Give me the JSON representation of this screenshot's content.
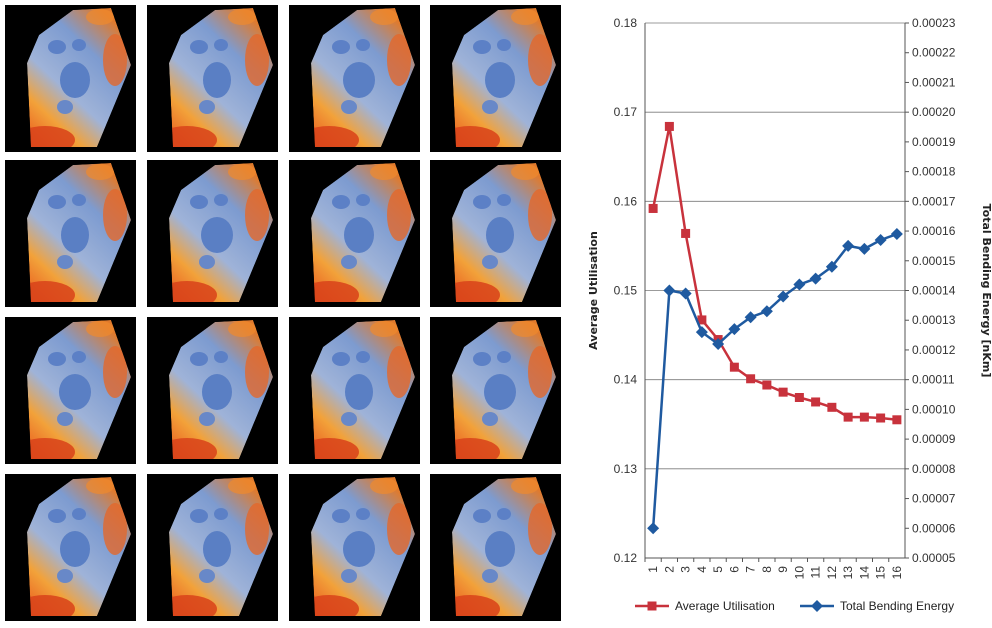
{
  "panel_grid": {
    "rows": 4,
    "cols": 4
  },
  "colors": {
    "utilisation": "#c8323c",
    "bending": "#1f5aa0",
    "grid": "#7a7a7a"
  },
  "chart_data": {
    "type": "line",
    "x": [
      "1",
      "2",
      "3",
      "4",
      "5",
      "6",
      "7",
      "8",
      "9",
      "10",
      "11",
      "12",
      "13",
      "14",
      "15",
      "16"
    ],
    "ylabel": "Average Utilisation",
    "y2label": "Total Bending Energy [nKm]",
    "ylim": [
      0.12,
      0.18
    ],
    "y2lim": [
      5e-05,
      0.00023
    ],
    "yticks": [
      "0.12",
      "0.13",
      "0.14",
      "0.15",
      "0.16",
      "0.17",
      "0.18"
    ],
    "y2ticks": [
      "0.00005",
      "0.00006",
      "0.00007",
      "0.00008",
      "0.00009",
      "0.00010",
      "0.00011",
      "0.00012",
      "0.00013",
      "0.00014",
      "0.00015",
      "0.00016",
      "0.00017",
      "0.00018",
      "0.00019",
      "0.00020",
      "0.00021",
      "0.00022",
      "0.00023"
    ],
    "grid": true,
    "legend_position": "bottom",
    "series": [
      {
        "name": "Average Utilisation",
        "axis": "left",
        "marker": "square",
        "values": [
          0.1592,
          0.1684,
          0.1564,
          0.1467,
          0.1445,
          0.1414,
          0.1401,
          0.1394,
          0.1386,
          0.138,
          0.1375,
          0.1369,
          0.1358,
          0.1358,
          0.1357,
          0.1355
        ]
      },
      {
        "name": "Total Bending Energy",
        "axis": "right",
        "marker": "diamond",
        "values": [
          6e-05,
          0.00014,
          0.000139,
          0.000126,
          0.000122,
          0.000127,
          0.000131,
          0.000133,
          0.000138,
          0.000142,
          0.000144,
          0.000148,
          0.000155,
          0.000154,
          0.000157,
          0.000159
        ]
      }
    ]
  }
}
